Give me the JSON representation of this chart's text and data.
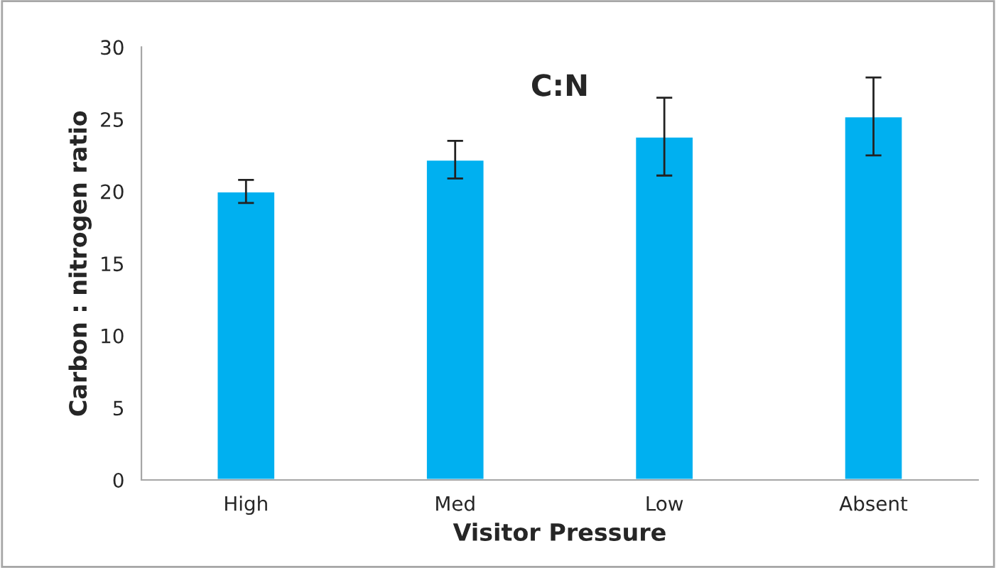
{
  "chart_data": {
    "type": "bar",
    "title": "C:N",
    "xlabel": "Visitor Pressure",
    "ylabel": "Carbon : nitrogen ratio",
    "categories": [
      "High",
      "Med",
      "Low",
      "Absent"
    ],
    "values": [
      20.0,
      22.2,
      23.8,
      25.2
    ],
    "errors": [
      0.8,
      1.3,
      2.7,
      2.7
    ],
    "color": "#00b0f0",
    "ylim": [
      0,
      30
    ],
    "yticks": [
      0,
      5,
      10,
      15,
      20,
      25,
      30
    ],
    "grid": false,
    "legend": false
  }
}
